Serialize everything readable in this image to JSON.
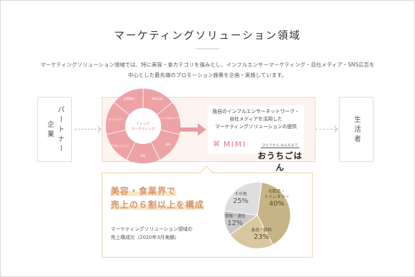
{
  "title": "マーケティングソリューション領域",
  "description": [
    "マーケティングソリューション領域では、特に美容・食カテゴリを強みとし、インフルエンサーマーケティング・自社メディア・SNS広告を",
    "中心とした最先端のプロモーション施策を企画・実施しています。"
  ],
  "flow": {
    "partner": "パートナー企業",
    "consumer": "生活者",
    "ring_center": [
      "トレンド",
      "マーケティング"
    ],
    "ring_segments": [
      "SNS広告",
      "インフルエンサー",
      "SNS",
      "自社",
      "プロモーション",
      "タイアップ",
      "記事制作"
    ],
    "card_text": [
      "独自のインフルエンサーネットワーク・",
      "自社メディアを活用した",
      "マーケティングソリューションの提供"
    ],
    "logo_mimi": "MIMI",
    "logo_ouchi_small": "ひとりから みんなまで",
    "logo_ouchi_big": "おうちごはん"
  },
  "summary": {
    "headline": [
      "美容・食業界で",
      "売上の６割以上を構成"
    ],
    "caption": [
      "マーケティングソリューション領域の",
      "売上構成比（2020年3月実績）"
    ]
  },
  "chart_data": {
    "type": "pie",
    "categories": [
      "化粧品・トイレタリー",
      "食品・飲料",
      "情報・通信",
      "その他"
    ],
    "values": [
      40,
      23,
      12,
      25
    ],
    "labels": [
      "化粧品・\nトイレタリー\n40%",
      "食品・飲料\n23%",
      "情報・通信\n12%",
      "その他\n25%"
    ],
    "colors": [
      "#c7b484",
      "#d9c79f",
      "#c9c9c9",
      "#dedede"
    ]
  },
  "colors": {
    "accent_pink": "#e79ba1",
    "accent_gold": "#d6956c"
  }
}
